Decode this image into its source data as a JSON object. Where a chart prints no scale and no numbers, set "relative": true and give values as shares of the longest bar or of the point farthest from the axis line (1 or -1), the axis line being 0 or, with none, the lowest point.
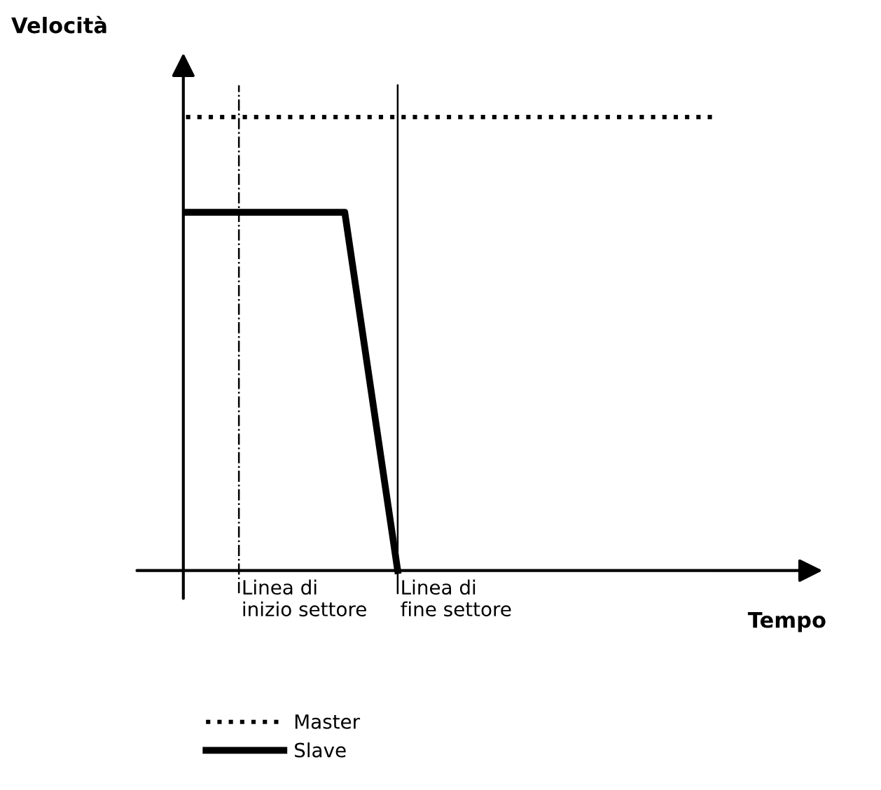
{
  "chart_data": {
    "type": "line",
    "relative": true,
    "xlabel": "Tempo",
    "ylabel": "Velocità",
    "legend": "bottom left",
    "categories": [
      null,
      null,
      null,
      null,
      null,
      null,
      null,
      null,
      null,
      null,
      null
    ],
    "series": [
      {
        "name": "Master",
        "color": "#000000",
        "line_style": "dotted",
        "values": [
          1,
          1,
          1,
          1,
          1,
          1,
          1,
          1,
          1,
          1,
          1
        ]
      },
      {
        "name": "Slave",
        "color": "#000000",
        "line_style": "solid",
        "values": [
          0.79,
          0.79,
          0.79,
          0.79,
          0,
          null,
          null,
          null,
          null,
          null,
          null
        ]
      }
    ],
    "annotations": [
      "Linea di\ninizio settore",
      "Linea di\nfine settore"
    ]
  }
}
